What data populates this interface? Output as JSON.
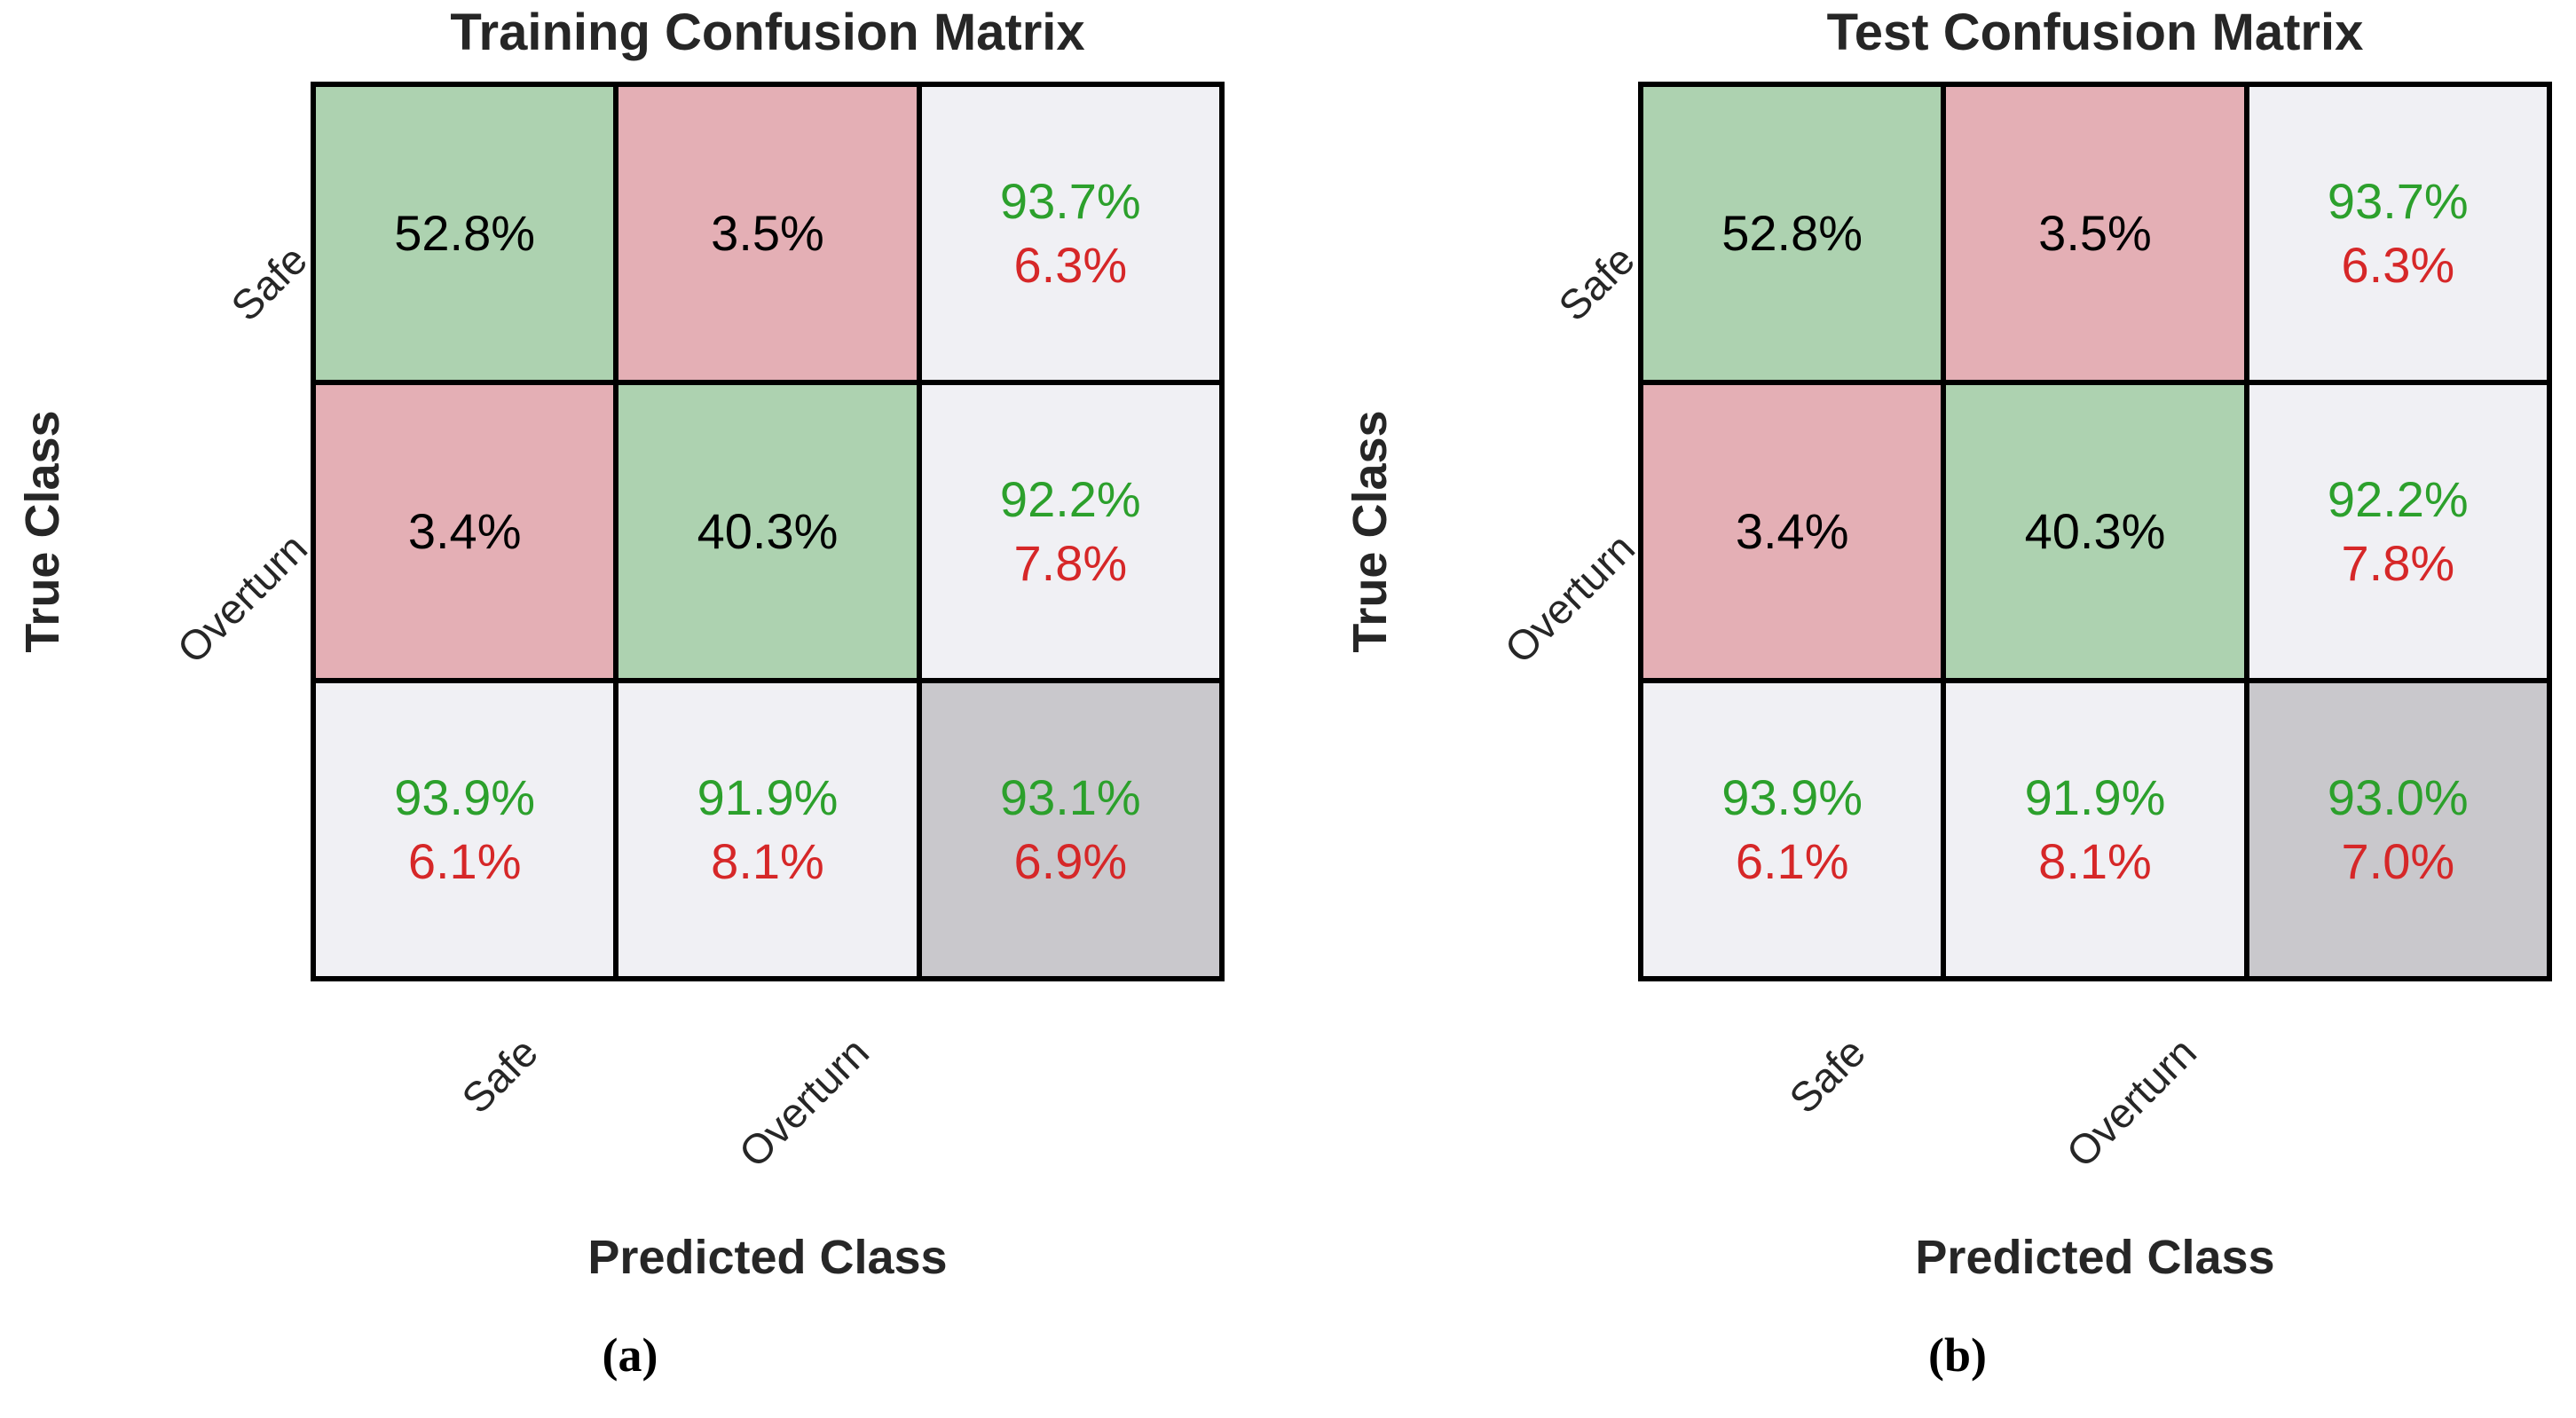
{
  "colors": {
    "diagonal_cell": "#add2b0",
    "off_diagonal_cell": "#e4afb5",
    "summary_cell": "#f0f0f4",
    "total_cell": "#c9c8cc",
    "positive_text": "#2ca02c",
    "negative_text": "#d62728",
    "grid_line": "#000000"
  },
  "panels": [
    {
      "caption": "(a)",
      "title": "Training Confusion Matrix",
      "xlabel": "Predicted Class",
      "ylabel": "True Class",
      "y_ticks": [
        "Safe",
        "Overturn"
      ],
      "x_ticks": [
        "Safe",
        "Overturn"
      ],
      "cells": {
        "r1c1": "52.8%",
        "r1c2": "3.5%",
        "r1_sum_pos": "93.7%",
        "r1_sum_neg": "6.3%",
        "r2c1": "3.4%",
        "r2c2": "40.3%",
        "r2_sum_pos": "92.2%",
        "r2_sum_neg": "7.8%",
        "c1_sum_pos": "93.9%",
        "c1_sum_neg": "6.1%",
        "c2_sum_pos": "91.9%",
        "c2_sum_neg": "8.1%",
        "total_pos": "93.1%",
        "total_neg": "6.9%"
      }
    },
    {
      "caption": "(b)",
      "title": "Test Confusion Matrix",
      "xlabel": "Predicted Class",
      "ylabel": "True Class",
      "y_ticks": [
        "Safe",
        "Overturn"
      ],
      "x_ticks": [
        "Safe",
        "Overturn"
      ],
      "cells": {
        "r1c1": "52.8%",
        "r1c2": "3.5%",
        "r1_sum_pos": "93.7%",
        "r1_sum_neg": "6.3%",
        "r2c1": "3.4%",
        "r2c2": "40.3%",
        "r2_sum_pos": "92.2%",
        "r2_sum_neg": "7.8%",
        "c1_sum_pos": "93.9%",
        "c1_sum_neg": "6.1%",
        "c2_sum_pos": "91.9%",
        "c2_sum_neg": "8.1%",
        "total_pos": "93.0%",
        "total_neg": "7.0%"
      }
    }
  ],
  "chart_data": [
    {
      "type": "heatmap",
      "title": "Training Confusion Matrix",
      "xlabel": "Predicted Class",
      "ylabel": "True Class",
      "x_tick_labels": [
        "Safe",
        "Overturn"
      ],
      "y_tick_labels": [
        "Safe",
        "Overturn"
      ],
      "cell_percentages": [
        [
          52.8,
          3.5
        ],
        [
          3.4,
          40.3
        ]
      ],
      "row_summary_pos_neg": [
        [
          93.7,
          6.3
        ],
        [
          92.2,
          7.8
        ]
      ],
      "col_summary_pos_neg": [
        [
          93.9,
          6.1
        ],
        [
          91.9,
          8.1
        ]
      ],
      "overall_pos_neg": [
        93.1,
        6.9
      ],
      "legend_position": "none",
      "grid": false
    },
    {
      "type": "heatmap",
      "title": "Test Confusion Matrix",
      "xlabel": "Predicted Class",
      "ylabel": "True Class",
      "x_tick_labels": [
        "Safe",
        "Overturn"
      ],
      "y_tick_labels": [
        "Safe",
        "Overturn"
      ],
      "cell_percentages": [
        [
          52.8,
          3.5
        ],
        [
          3.4,
          40.3
        ]
      ],
      "row_summary_pos_neg": [
        [
          93.7,
          6.3
        ],
        [
          92.2,
          7.8
        ]
      ],
      "col_summary_pos_neg": [
        [
          93.9,
          6.1
        ],
        [
          91.9,
          8.1
        ]
      ],
      "overall_pos_neg": [
        93.0,
        7.0
      ],
      "legend_position": "none",
      "grid": false
    }
  ]
}
